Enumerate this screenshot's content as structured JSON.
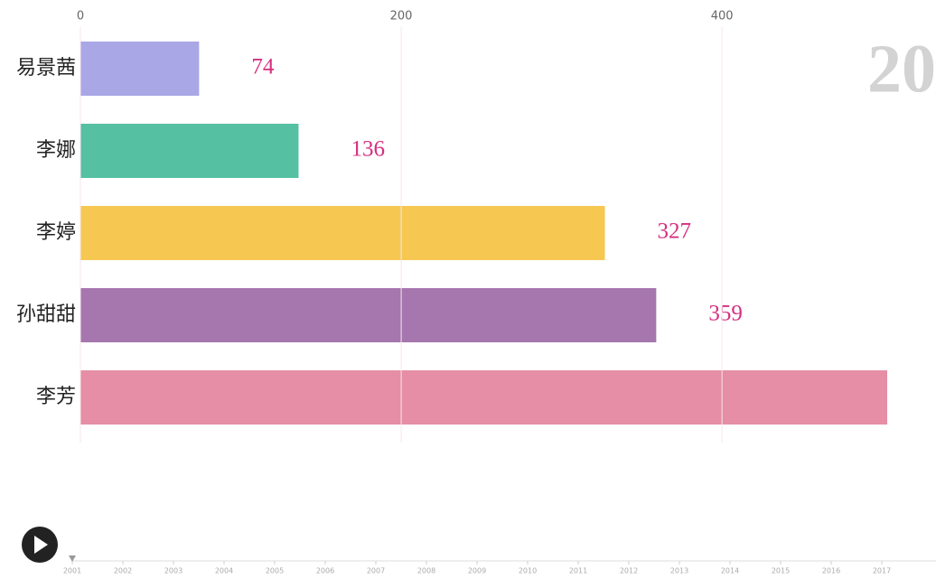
{
  "chart_data": {
    "type": "hbar",
    "categories": [
      "易景茜",
      "李娜",
      "李婷",
      "孙甜甜",
      "李芳"
    ],
    "values": [
      74,
      136,
      327,
      359,
      503
    ],
    "value_labels": [
      "74",
      "136",
      "327",
      "359",
      null
    ],
    "colors": [
      "#a9a7e6",
      "#55c0a2",
      "#f6c852",
      "#a676ae",
      "#e58ea5"
    ],
    "xlim": [
      0,
      503
    ],
    "xticks": [
      0,
      200,
      400
    ],
    "grid": true,
    "period_label": "20",
    "timeline": {
      "xlim": [
        2001,
        2017
      ],
      "xticks": [
        2001,
        2002,
        2003,
        2004,
        2005,
        2006,
        2007,
        2008,
        2009,
        2010,
        2011,
        2012,
        2013,
        2014,
        2015,
        2016,
        2017
      ]
    }
  }
}
